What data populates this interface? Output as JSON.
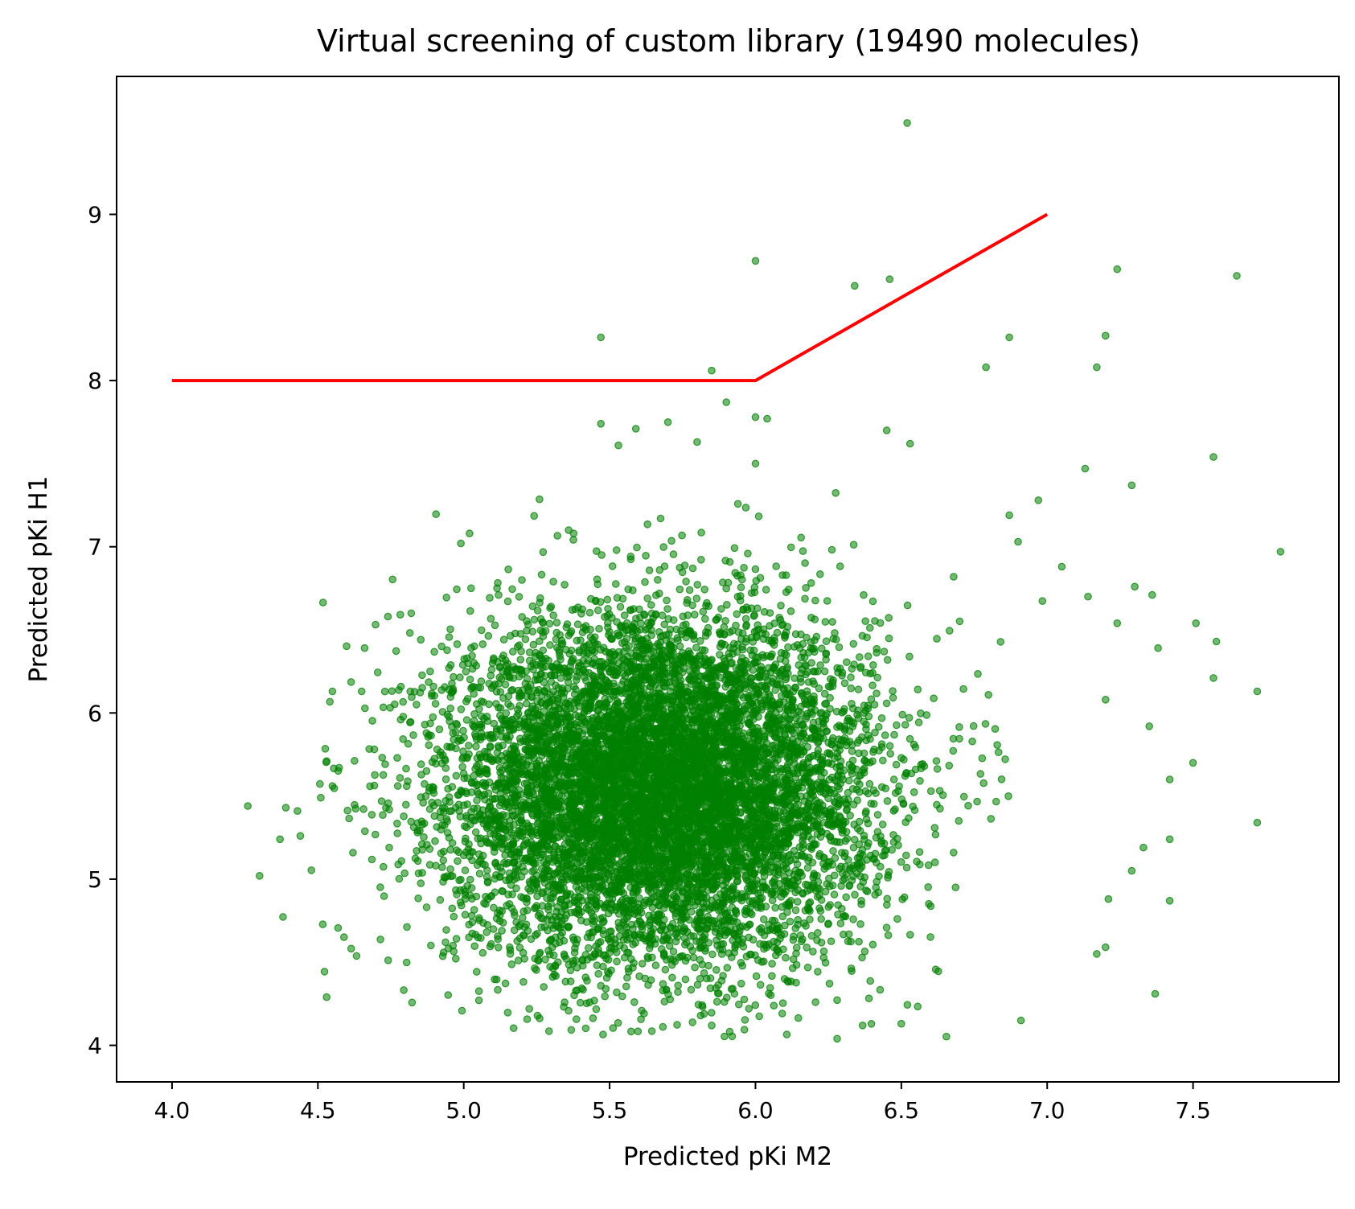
{
  "chart_data": {
    "type": "scatter",
    "title": "Virtual screening of custom library (19490 molecules)",
    "xlabel": "Predicted pKi M2",
    "ylabel": "Predicted pKi H1",
    "xlim": [
      3.81,
      8.0
    ],
    "ylim": [
      3.78,
      9.83
    ],
    "xticks": [
      {
        "value": 4.0,
        "label": "4.0"
      },
      {
        "value": 4.5,
        "label": "4.5"
      },
      {
        "value": 5.0,
        "label": "5.0"
      },
      {
        "value": 5.5,
        "label": "5.5"
      },
      {
        "value": 6.0,
        "label": "6.0"
      },
      {
        "value": 6.5,
        "label": "6.5"
      },
      {
        "value": 7.0,
        "label": "7.0"
      },
      {
        "value": 7.5,
        "label": "7.5"
      }
    ],
    "yticks": [
      {
        "value": 4,
        "label": "4"
      },
      {
        "value": 5,
        "label": "5"
      },
      {
        "value": 6,
        "label": "6"
      },
      {
        "value": 7,
        "label": "7"
      },
      {
        "value": 8,
        "label": "8"
      },
      {
        "value": 9,
        "label": "9"
      }
    ],
    "grid": false,
    "legend": "none",
    "point_count": 19490,
    "series": [
      {
        "kind": "scatter",
        "color": "#008000",
        "alpha": 0.6,
        "distribution": {
          "center": [
            5.68,
            5.54
          ],
          "spread": [
            0.36,
            0.52
          ]
        },
        "outliers": [
          [
            6.52,
            9.55
          ],
          [
            6.0,
            8.72
          ],
          [
            6.34,
            8.57
          ],
          [
            6.46,
            8.61
          ],
          [
            7.24,
            8.67
          ],
          [
            7.65,
            8.63
          ],
          [
            5.47,
            8.26
          ],
          [
            6.87,
            8.26
          ],
          [
            7.2,
            8.27
          ],
          [
            5.85,
            8.06
          ],
          [
            6.79,
            8.08
          ],
          [
            7.17,
            8.08
          ],
          [
            5.9,
            7.87
          ],
          [
            6.0,
            7.78
          ],
          [
            6.04,
            7.77
          ],
          [
            5.47,
            7.74
          ],
          [
            5.59,
            7.71
          ],
          [
            5.7,
            7.75
          ],
          [
            6.45,
            7.7
          ],
          [
            6.53,
            7.62
          ],
          [
            5.53,
            7.61
          ],
          [
            5.8,
            7.63
          ],
          [
            7.57,
            7.54
          ],
          [
            6.0,
            7.5
          ],
          [
            7.13,
            7.47
          ],
          [
            7.29,
            7.37
          ],
          [
            6.87,
            7.19
          ],
          [
            6.97,
            7.28
          ],
          [
            5.02,
            7.08
          ],
          [
            4.99,
            7.02
          ],
          [
            6.9,
            7.03
          ],
          [
            7.05,
            6.88
          ],
          [
            7.8,
            6.97
          ],
          [
            7.14,
            6.7
          ],
          [
            7.36,
            6.71
          ],
          [
            7.3,
            6.76
          ],
          [
            7.51,
            6.54
          ],
          [
            7.24,
            6.54
          ],
          [
            7.38,
            6.39
          ],
          [
            7.58,
            6.43
          ],
          [
            7.57,
            6.21
          ],
          [
            7.72,
            6.13
          ],
          [
            7.2,
            6.08
          ],
          [
            7.35,
            5.92
          ],
          [
            7.5,
            5.7
          ],
          [
            7.42,
            5.6
          ],
          [
            7.72,
            5.34
          ],
          [
            7.42,
            5.24
          ],
          [
            7.33,
            5.19
          ],
          [
            7.29,
            5.05
          ],
          [
            7.42,
            4.87
          ],
          [
            7.21,
            4.88
          ],
          [
            7.2,
            4.59
          ],
          [
            7.17,
            4.55
          ],
          [
            7.37,
            4.31
          ],
          [
            4.26,
            5.44
          ],
          [
            4.3,
            5.02
          ],
          [
            4.37,
            5.24
          ],
          [
            4.39,
            5.43
          ],
          [
            4.43,
            5.41
          ],
          [
            4.44,
            5.26
          ],
          [
            4.53,
            4.29
          ],
          [
            6.28,
            4.04
          ],
          [
            5.85,
            4.12
          ],
          [
            6.5,
            4.13
          ],
          [
            6.91,
            4.15
          ],
          [
            5.47,
            6.38
          ],
          [
            4.66,
            6.39
          ],
          [
            4.55,
            6.13
          ],
          [
            4.65,
            6.13
          ],
          [
            4.74,
            6.58
          ],
          [
            4.82,
            6.6
          ],
          [
            4.51,
            5.49
          ],
          [
            4.55,
            5.56
          ],
          [
            4.53,
            5.71
          ]
        ]
      },
      {
        "kind": "line",
        "name": "",
        "color": "#ff0000",
        "x": [
          4.0,
          6.0,
          7.0
        ],
        "y": [
          8.0,
          8.0,
          9.0
        ]
      }
    ]
  }
}
